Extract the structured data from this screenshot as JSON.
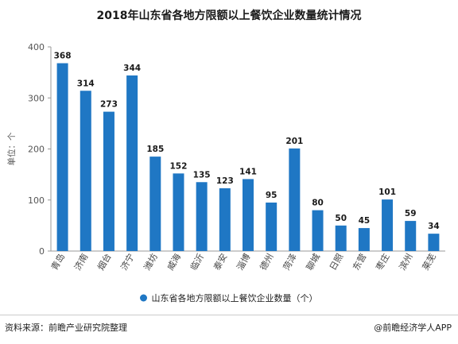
{
  "chart_data": {
    "type": "bar",
    "title": "2018年山东省各地方限额以上餐饮企业数量统计情况",
    "ylabel": "单位：个",
    "ylim": [
      0,
      400
    ],
    "yticks": [
      0,
      100,
      200,
      300,
      400
    ],
    "categories": [
      "青岛",
      "济南",
      "烟台",
      "济宁",
      "潍坊",
      "威海",
      "临沂",
      "泰安",
      "淄博",
      "德州",
      "菏泽",
      "聊城",
      "日照",
      "东营",
      "枣庄",
      "滨州",
      "莱芜"
    ],
    "series": [
      {
        "name": "山东省各地方限额以上餐饮企业数量（个）",
        "values": [
          368,
          314,
          273,
          344,
          185,
          152,
          135,
          123,
          141,
          95,
          201,
          80,
          50,
          45,
          101,
          59,
          34
        ]
      }
    ],
    "legend_position": "bottom",
    "grid": false,
    "bar_color": "#1f77c4"
  },
  "footer": {
    "source": "资料来源：前瞻产业研究院整理",
    "brand": "@前瞻经济学人APP"
  }
}
